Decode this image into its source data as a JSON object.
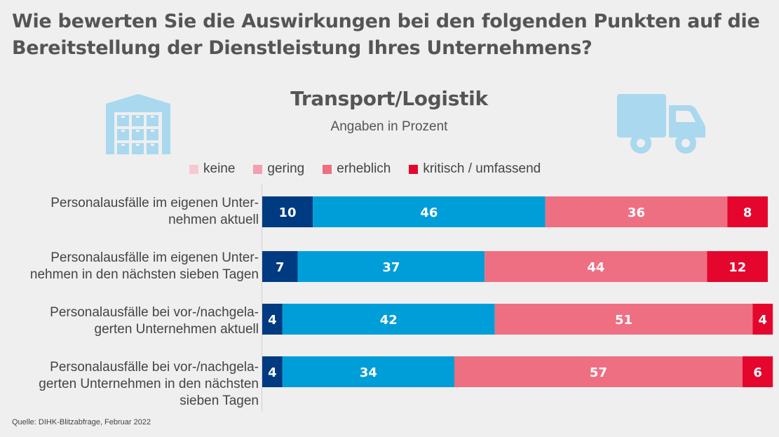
{
  "title": "Wie bewerten Sie die Auswirkungen bei den folgenden Punkten auf die Bereitstellung der Dienstleistung Ihres Unternehmens?",
  "source": "Quelle: DIHK-Blitzabfrage, Februar 2022",
  "icons": {
    "left": "warehouse-icon",
    "right": "truck-icon",
    "color": "#a9d8ef"
  },
  "chart_data": {
    "type": "bar",
    "orientation": "horizontal",
    "stacked": true,
    "title": "Transport/Logistik",
    "subtitle": "Angaben in Prozent",
    "xlim": [
      0,
      100
    ],
    "legend_position": "top",
    "legend": [
      {
        "label": "keine",
        "color": "#f7c8d2"
      },
      {
        "label": "gering",
        "color": "#f29faf"
      },
      {
        "label": "erheblich",
        "color": "#ee6f82"
      },
      {
        "label": "kritisch / umfassend",
        "color": "#e4062d"
      }
    ],
    "categories": [
      "Personalausfälle im eigenen Unter-\nnehmen aktuell",
      "Personalausfälle im eigenen Unter-\nnehmen in den nächsten sieben Tagen",
      "Personalausfälle bei vor-/nachgela-\ngerten Unternehmen aktuell",
      "Personalausfälle bei vor-/nachgela-\ngerten Unternehmen in den nächsten\nsieben Tagen"
    ],
    "series": [
      {
        "name": "keine",
        "color": "#003a80",
        "values": [
          10,
          7,
          4,
          4
        ]
      },
      {
        "name": "gering",
        "color": "#009ed8",
        "values": [
          46,
          37,
          42,
          34
        ]
      },
      {
        "name": "erheblich",
        "color": "#ee6f82",
        "values": [
          36,
          44,
          51,
          57
        ]
      },
      {
        "name": "kritisch / umfassend",
        "color": "#e4062d",
        "values": [
          8,
          12,
          4,
          6
        ]
      }
    ]
  }
}
